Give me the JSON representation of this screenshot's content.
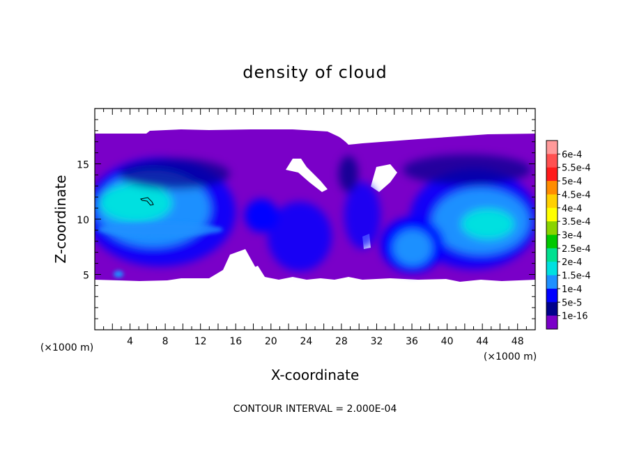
{
  "chart_data": {
    "type": "heatmap",
    "title": "density of cloud",
    "xlabel": "X-coordinate",
    "ylabel": "Z-coordinate",
    "x_unit": "(×1000 m)",
    "z_unit": "(×1000 m)",
    "xlim": [
      0,
      50
    ],
    "ylim": [
      0,
      20
    ],
    "x_ticks": [
      "4",
      "8",
      "12",
      "16",
      "20",
      "24",
      "28",
      "32",
      "36",
      "40",
      "44",
      "48"
    ],
    "y_ticks": [
      "5",
      "10",
      "15"
    ],
    "colorbar": {
      "labels": [
        "6e-4",
        "5.5e-4",
        "5e-4",
        "4.5e-4",
        "4e-4",
        "3.5e-4",
        "3e-4",
        "2.5e-4",
        "2e-4",
        "1.5e-4",
        "1e-4",
        "5e-5",
        "1e-16"
      ],
      "colors": [
        "#ff9a9a",
        "#ff5050",
        "#ff1a1a",
        "#ff8c00",
        "#ffd000",
        "#ffff00",
        "#8ad400",
        "#00c800",
        "#00e090",
        "#00e0e0",
        "#1e90ff",
        "#0000ff",
        "#00008b",
        "#7a00c8"
      ]
    },
    "cloud_layer_z": [
      4.5,
      17.8
    ],
    "annotation": "CONTOUR INTERVAL = 2.000E-04"
  }
}
